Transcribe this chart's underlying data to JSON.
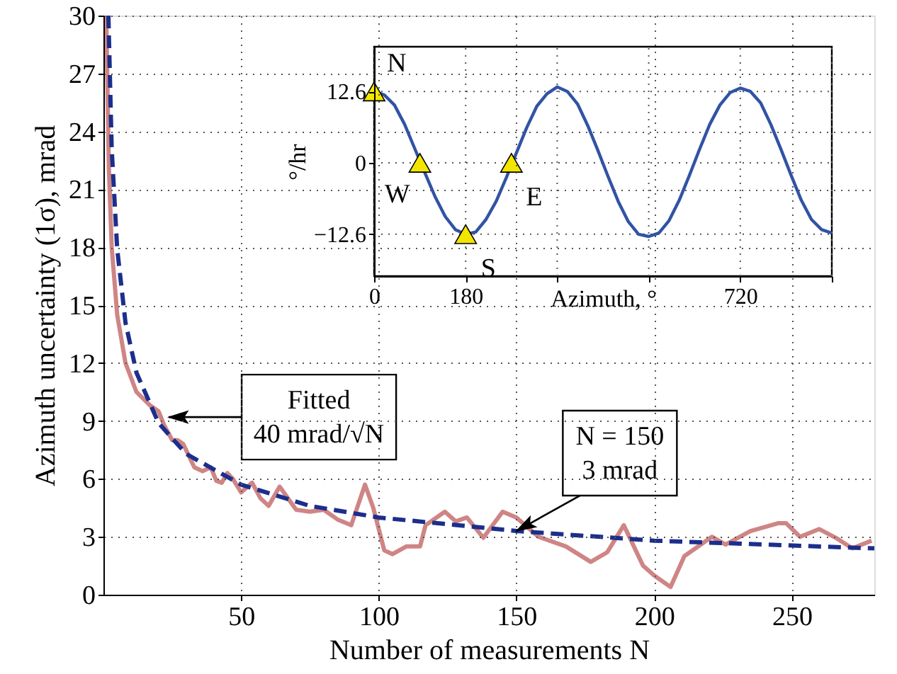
{
  "chart_data": [
    {
      "type": "line",
      "xlabel": "Number of measurements N",
      "ylabel": "Azimuth uncertainty (1σ), mrad",
      "xlim": [
        0,
        280
      ],
      "ylim": [
        0,
        30
      ],
      "xticks": [
        50,
        100,
        150,
        200,
        250
      ],
      "yticks": [
        0,
        3,
        6,
        9,
        12,
        15,
        18,
        21,
        24,
        27,
        30
      ],
      "grid": true,
      "series": [
        {
          "color": "#cf8585",
          "line_style": "solid",
          "x": [
            1,
            2,
            3,
            5,
            8,
            12,
            17,
            20,
            22,
            25,
            27,
            29,
            31,
            33,
            36,
            39,
            41,
            43,
            45,
            47,
            50,
            54,
            57,
            60,
            64,
            67,
            70,
            75,
            80,
            85,
            90,
            95,
            98,
            102,
            105,
            110,
            115,
            117,
            124,
            128,
            132,
            138,
            145,
            150,
            158,
            168,
            177,
            183,
            189,
            196,
            200,
            206,
            211,
            221,
            226,
            235,
            245,
            248,
            253,
            260,
            266,
            272,
            279
          ],
          "values": [
            30,
            22,
            18,
            14.5,
            12,
            10.5,
            9.8,
            9.5,
            8.8,
            8,
            8,
            7.8,
            7.2,
            6.6,
            6.4,
            6.6,
            5.9,
            5.8,
            6.3,
            6,
            5.3,
            5.8,
            5,
            4.6,
            5.6,
            5,
            4.4,
            4.3,
            4.4,
            3.9,
            3.6,
            5.7,
            4.5,
            2.3,
            2.1,
            2.5,
            2.5,
            3.6,
            4.3,
            3.8,
            4,
            2.95,
            4.3,
            4,
            3,
            2.5,
            1.7,
            2.2,
            3.6,
            1.5,
            1,
            0.4,
            2,
            3,
            2.6,
            3.3,
            3.7,
            3.7,
            3,
            3.4,
            2.95,
            2.4,
            2.8
          ]
        },
        {
          "type": "line",
          "color": "#1c2e8c",
          "line_style": "dashed",
          "x": [
            1.8,
            3,
            5,
            8,
            12,
            20,
            30,
            50,
            75,
            100,
            150,
            200,
            280
          ],
          "values": [
            30,
            23.1,
            17.9,
            14.1,
            11.5,
            8.9,
            7.3,
            5.7,
            4.6,
            4,
            3.3,
            2.8,
            2.4
          ]
        }
      ],
      "annotations": [
        {
          "text": "Fitted\n40 mrad/√N",
          "x": 23.7,
          "y": 9.2
        },
        {
          "text": "N = 150\n3 mrad",
          "x": 150,
          "y": 3.3
        }
      ]
    },
    {
      "type": "line",
      "xlabel": "Azimuth, °",
      "ylabel": "°/hr",
      "xlim": [
        0,
        900
      ],
      "ylim": [
        -20,
        20.5
      ],
      "xticks": [
        0,
        180,
        {
          "value": 360,
          "label": null
        },
        {
          "value": 540,
          "label": null
        },
        720,
        {
          "value": 900,
          "label": null
        }
      ],
      "yticks": [
        -12.6,
        0,
        12.6
      ],
      "grid": true,
      "series": [
        {
          "color": "#3153a5",
          "line_style": "solid",
          "x": [
            0,
            20,
            40,
            60,
            80,
            100,
            120,
            140,
            160,
            180,
            200,
            220,
            240,
            260,
            280,
            300,
            320,
            340,
            360,
            380,
            400,
            420,
            440,
            460,
            480,
            500,
            520,
            540,
            560,
            580,
            600,
            620,
            640,
            660,
            680,
            700,
            720,
            740,
            760,
            780,
            800,
            820,
            840,
            860,
            880,
            900
          ],
          "values": [
            12.6,
            12,
            10.2,
            6.8,
            2.5,
            -1.8,
            -6,
            -9.5,
            -11.8,
            -12.6,
            -12.2,
            -10,
            -6.8,
            -2.6,
            1.8,
            6.2,
            10,
            12.2,
            13.4,
            12.6,
            10.4,
            6.6,
            2.2,
            -2.4,
            -6.8,
            -10.4,
            -12.6,
            -13,
            -12.4,
            -10.2,
            -6.6,
            -2.2,
            2.4,
            6.8,
            10.2,
            12.4,
            13.2,
            12.6,
            10.6,
            6.8,
            2.4,
            -2.2,
            -6.6,
            -10,
            -11.8,
            -12.4
          ]
        },
        {
          "type": "scatter",
          "marker": "triangle",
          "color": "#f2e600",
          "x": [
            0,
            90,
            180,
            270
          ],
          "values": [
            12.6,
            0,
            -12.6,
            0
          ]
        }
      ],
      "annotations": [
        {
          "text": "N",
          "x": 0,
          "y": 12.6
        },
        {
          "text": "W",
          "x": 90,
          "y": 0
        },
        {
          "text": "S",
          "x": 180,
          "y": -12.6
        },
        {
          "text": "E",
          "x": 270,
          "y": 0
        }
      ]
    }
  ]
}
